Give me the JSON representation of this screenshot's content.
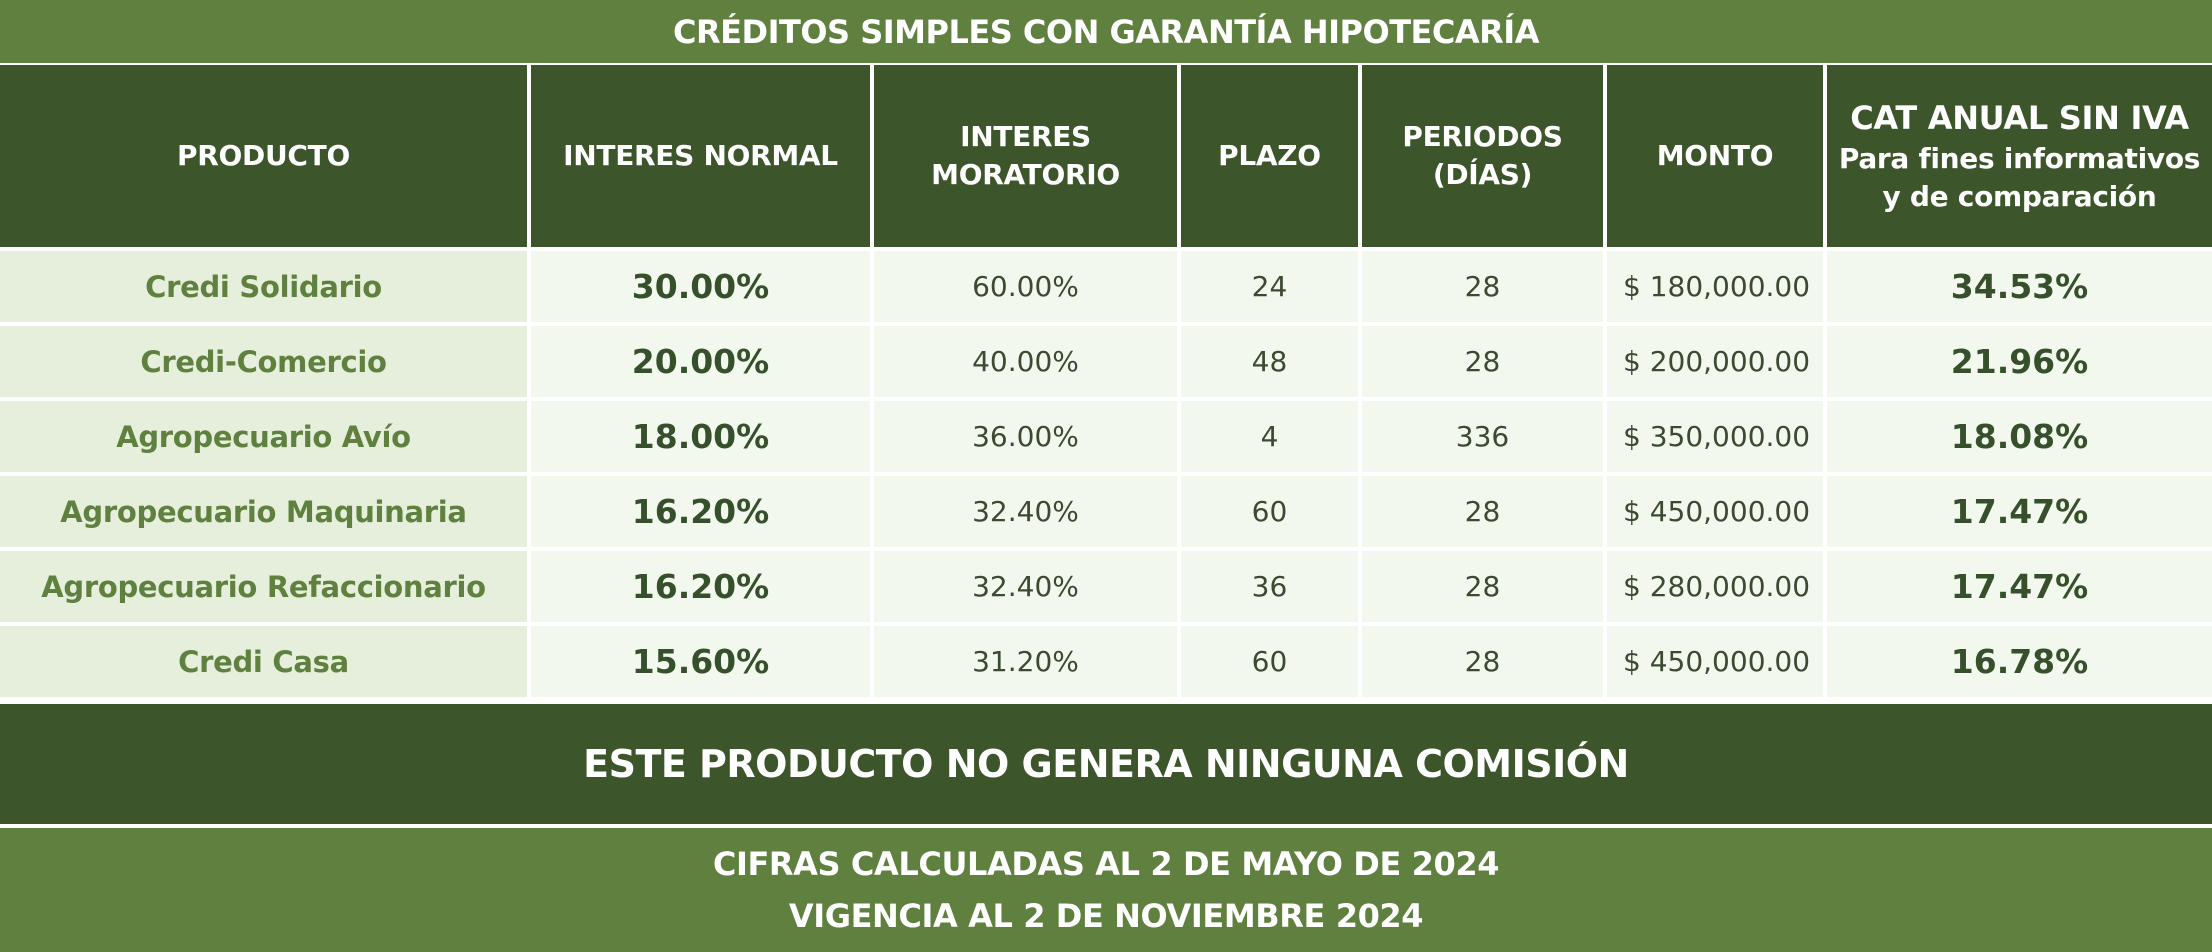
{
  "title": "CRÉDITOS SIMPLES CON GARANTÍA HIPOTECARÍA",
  "headers": {
    "producto": "PRODUCTO",
    "interes_normal": "INTERES NORMAL",
    "interes_moratorio_1": "INTERES",
    "interes_moratorio_2": "MORATORIO",
    "plazo": "PLAZO",
    "periodos_1": "PERIODOS",
    "periodos_2": "(DÍAS)",
    "monto": "MONTO",
    "cat_1": "CAT ANUAL SIN IVA",
    "cat_2": "Para fines informativos",
    "cat_3": "y de comparación"
  },
  "rows": [
    {
      "producto": "Credi Solidario",
      "interes_normal": "30.00%",
      "interes_moratorio": "60.00%",
      "plazo": "24",
      "periodos": "28",
      "monto": "$  180,000.00",
      "cat": "34.53%"
    },
    {
      "producto": "Credi-Comercio",
      "interes_normal": "20.00%",
      "interes_moratorio": "40.00%",
      "plazo": "48",
      "periodos": "28",
      "monto": "$ 200,000.00",
      "cat": "21.96%"
    },
    {
      "producto": "Agropecuario Avío",
      "interes_normal": "18.00%",
      "interes_moratorio": "36.00%",
      "plazo": "4",
      "periodos": "336",
      "monto": "$ 350,000.00",
      "cat": "18.08%"
    },
    {
      "producto": "Agropecuario Maquinaria",
      "interes_normal": "16.20%",
      "interes_moratorio": "32.40%",
      "plazo": "60",
      "periodos": "28",
      "monto": "$ 450,000.00",
      "cat": "17.47%"
    },
    {
      "producto": "Agropecuario Refaccionario",
      "interes_normal": "16.20%",
      "interes_moratorio": "32.40%",
      "plazo": "36",
      "periodos": "28",
      "monto": "$ 280,000.00",
      "cat": "17.47%"
    },
    {
      "producto": "Credi Casa",
      "interes_normal": "15.60%",
      "interes_moratorio": "31.20%",
      "plazo": "60",
      "periodos": "28",
      "monto": "$ 450,000.00",
      "cat": "16.78%"
    }
  ],
  "commission_note": "ESTE PRODUCTO NO GENERA NINGUNA COMISIÓN",
  "footer": {
    "line1": "CIFRAS CALCULADAS AL 2 DE MAYO DE 2024",
    "line2": "VIGENCIA AL 2 DE NOVIEMBRE 2024"
  },
  "colors": {
    "light_green": "#5f803f",
    "dark_green": "#3d552b",
    "row_bg": "#f3f8ef",
    "product_bg": "#e5efdb"
  }
}
